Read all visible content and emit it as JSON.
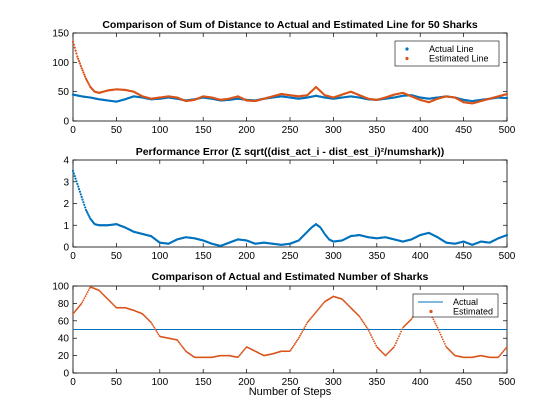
{
  "colors": {
    "blue": "#0072BD",
    "orange": "#D95319"
  },
  "chart_data": [
    {
      "type": "scatter",
      "title": "Comparison of Sum of Distance to Actual and Estimated Line for 50 Sharks",
      "xlabel": "",
      "ylabel": "",
      "xlim": [
        0,
        500
      ],
      "ylim": [
        0,
        150
      ],
      "xticks": [
        0,
        50,
        100,
        150,
        200,
        250,
        300,
        350,
        400,
        450,
        500
      ],
      "yticks": [
        0,
        50,
        100,
        150
      ],
      "legend_position": "top-right",
      "grid": false,
      "series": [
        {
          "name": "Actual Line",
          "color": "#0072BD",
          "x": [
            0,
            10,
            20,
            30,
            40,
            50,
            60,
            70,
            80,
            90,
            100,
            110,
            120,
            130,
            140,
            150,
            160,
            170,
            180,
            190,
            200,
            210,
            220,
            230,
            240,
            250,
            260,
            270,
            280,
            290,
            300,
            310,
            320,
            330,
            340,
            350,
            360,
            370,
            380,
            390,
            400,
            410,
            420,
            430,
            440,
            450,
            460,
            470,
            480,
            490,
            500
          ],
          "y": [
            45,
            42,
            40,
            37,
            35,
            33,
            37,
            42,
            40,
            37,
            38,
            40,
            38,
            35,
            37,
            40,
            38,
            35,
            36,
            38,
            36,
            35,
            38,
            40,
            42,
            40,
            38,
            40,
            43,
            40,
            38,
            40,
            42,
            40,
            37,
            36,
            38,
            40,
            43,
            44,
            40,
            38,
            40,
            42,
            40,
            36,
            34,
            36,
            38,
            40,
            39
          ]
        },
        {
          "name": "Estimated Line",
          "color": "#D95319",
          "x": [
            0,
            5,
            10,
            15,
            20,
            25,
            30,
            35,
            40,
            50,
            60,
            70,
            80,
            90,
            100,
            110,
            120,
            130,
            140,
            150,
            160,
            170,
            180,
            190,
            200,
            210,
            220,
            230,
            240,
            250,
            260,
            270,
            280,
            290,
            300,
            310,
            320,
            330,
            340,
            350,
            360,
            370,
            380,
            390,
            400,
            410,
            420,
            430,
            440,
            450,
            460,
            470,
            480,
            490,
            500
          ],
          "y": [
            135,
            110,
            90,
            72,
            58,
            50,
            48,
            50,
            52,
            54,
            53,
            50,
            42,
            38,
            40,
            42,
            40,
            34,
            36,
            42,
            40,
            36,
            38,
            42,
            35,
            34,
            38,
            42,
            46,
            44,
            42,
            44,
            58,
            44,
            40,
            45,
            50,
            44,
            38,
            36,
            40,
            45,
            48,
            42,
            36,
            32,
            38,
            42,
            40,
            32,
            30,
            34,
            38,
            42,
            46
          ]
        }
      ]
    },
    {
      "type": "scatter",
      "title": "Performance Error (Σ sqrt((dist_act_i - dist_est_i)²/numshark))",
      "xlabel": "",
      "ylabel": "",
      "xlim": [
        0,
        500
      ],
      "ylim": [
        0,
        4
      ],
      "xticks": [
        0,
        50,
        100,
        150,
        200,
        250,
        300,
        350,
        400,
        450,
        500
      ],
      "yticks": [
        0,
        1,
        2,
        3,
        4
      ],
      "grid": false,
      "series": [
        {
          "color": "#0072BD",
          "x": [
            0,
            5,
            10,
            15,
            20,
            25,
            30,
            40,
            50,
            60,
            70,
            80,
            90,
            100,
            110,
            120,
            130,
            140,
            150,
            160,
            170,
            180,
            190,
            200,
            210,
            220,
            230,
            240,
            250,
            260,
            265,
            270,
            275,
            280,
            285,
            290,
            295,
            300,
            310,
            320,
            330,
            340,
            350,
            360,
            370,
            380,
            390,
            400,
            410,
            420,
            430,
            440,
            450,
            460,
            470,
            480,
            490,
            500
          ],
          "y": [
            3.5,
            2.9,
            2.3,
            1.7,
            1.3,
            1.05,
            1.0,
            1.0,
            1.05,
            0.9,
            0.7,
            0.6,
            0.5,
            0.2,
            0.15,
            0.35,
            0.45,
            0.4,
            0.3,
            0.15,
            0.05,
            0.2,
            0.35,
            0.3,
            0.15,
            0.2,
            0.15,
            0.1,
            0.15,
            0.3,
            0.5,
            0.7,
            0.9,
            1.05,
            0.9,
            0.6,
            0.35,
            0.25,
            0.3,
            0.5,
            0.55,
            0.45,
            0.4,
            0.45,
            0.35,
            0.25,
            0.35,
            0.55,
            0.65,
            0.45,
            0.2,
            0.15,
            0.25,
            0.1,
            0.25,
            0.2,
            0.4,
            0.55
          ]
        }
      ]
    },
    {
      "type": "scatter",
      "title": "Comparison of Actual and Estimated Number of Sharks",
      "xlabel": "Number of Steps",
      "ylabel": "",
      "xlim": [
        0,
        500
      ],
      "ylim": [
        0,
        100
      ],
      "xticks": [
        0,
        50,
        100,
        150,
        200,
        250,
        300,
        350,
        400,
        450,
        500
      ],
      "yticks": [
        0,
        20,
        40,
        60,
        80,
        100
      ],
      "legend_position": "top-right",
      "grid": false,
      "series": [
        {
          "name": "Actual",
          "color": "#0072BD",
          "x": [
            0,
            500
          ],
          "y": [
            50,
            50
          ]
        },
        {
          "name": "Estimated",
          "color": "#D95319",
          "x": [
            0,
            10,
            20,
            30,
            40,
            50,
            60,
            70,
            80,
            90,
            100,
            110,
            120,
            130,
            140,
            150,
            160,
            170,
            180,
            190,
            200,
            210,
            220,
            230,
            240,
            250,
            260,
            270,
            280,
            290,
            300,
            310,
            320,
            330,
            340,
            350,
            360,
            370,
            380,
            390,
            400,
            410,
            420,
            430,
            440,
            450,
            460,
            470,
            480,
            490,
            500
          ],
          "y": [
            68,
            80,
            99,
            95,
            85,
            75,
            75,
            72,
            68,
            58,
            42,
            40,
            38,
            25,
            18,
            18,
            18,
            20,
            20,
            18,
            30,
            25,
            20,
            22,
            25,
            25,
            40,
            58,
            70,
            82,
            88,
            85,
            75,
            65,
            50,
            30,
            20,
            30,
            52,
            62,
            78,
            72,
            52,
            30,
            20,
            18,
            18,
            20,
            18,
            18,
            30
          ]
        }
      ]
    }
  ]
}
